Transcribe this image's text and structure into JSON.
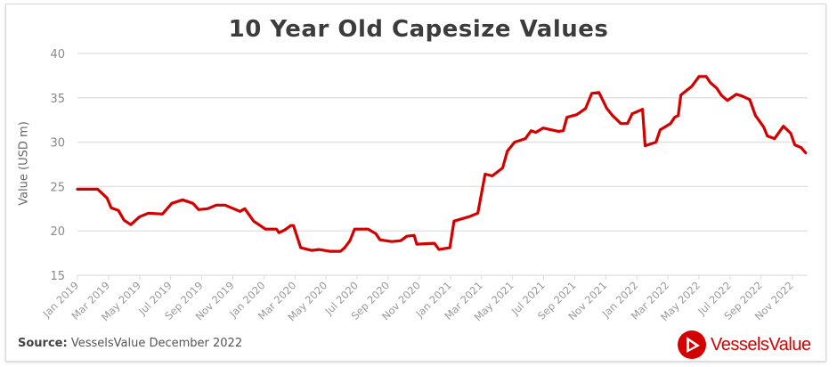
{
  "chart_data": {
    "type": "line",
    "title": "10 Year Old Capesize Values",
    "xlabel": "",
    "ylabel": "Value (USD m)",
    "ylim": [
      15,
      40
    ],
    "yticks": [
      15,
      20,
      25,
      30,
      35,
      40
    ],
    "xticks": [
      "Jan 2019",
      "Mar 2019",
      "May 2019",
      "Jul 2019",
      "Sep 2019",
      "Nov 2019",
      "Jan 2020",
      "Mar 2020",
      "May 2020",
      "Jul 2020",
      "Sep 2020",
      "Nov 2020",
      "Jan 2021",
      "Mar 2021",
      "May 2021",
      "Jul 2021",
      "Sep 2021",
      "Nov 2021",
      "Jan 2022",
      "Mar 2022",
      "May 2022",
      "Jul 2022",
      "Sep 2022",
      "Nov 2022"
    ],
    "grid": true,
    "legend": "none",
    "line_color": "#d40000",
    "series": [
      {
        "x": [
          "2019-01-01",
          "2019-02-10",
          "2019-02-28",
          "2019-03-06",
          "2019-03-20",
          "2019-04-01",
          "2019-04-14",
          "2019-05-01",
          "2019-05-18",
          "2019-06-15",
          "2019-07-03",
          "2019-07-24",
          "2019-08-14",
          "2019-08-25",
          "2019-09-12",
          "2019-09-29",
          "2019-10-16",
          "2019-11-15",
          "2019-11-24",
          "2019-12-11",
          "2020-01-04",
          "2020-01-25",
          "2020-01-30",
          "2020-02-11",
          "2020-02-23",
          "2020-02-28",
          "2020-03-12",
          "2020-04-03",
          "2020-04-17",
          "2020-05-08",
          "2020-05-29",
          "2020-06-07",
          "2020-06-17",
          "2020-06-26",
          "2020-07-22",
          "2020-08-07",
          "2020-08-15",
          "2020-09-08",
          "2020-09-25",
          "2020-10-07",
          "2020-10-21",
          "2020-10-26",
          "2020-11-30",
          "2020-12-09",
          "2020-12-30",
          "2021-01-08",
          "2021-01-25",
          "2021-02-07",
          "2021-02-24",
          "2021-03-08",
          "2021-03-22",
          "2021-04-12",
          "2021-04-21",
          "2021-05-05",
          "2021-05-26",
          "2021-06-07",
          "2021-06-16",
          "2021-06-30",
          "2021-07-30",
          "2021-08-09",
          "2021-08-16",
          "2021-09-05",
          "2021-09-22",
          "2021-10-04",
          "2021-10-18",
          "2021-11-03",
          "2021-11-14",
          "2021-11-30",
          "2021-12-13",
          "2021-12-22",
          "2022-01-12",
          "2022-01-17",
          "2022-02-08",
          "2022-02-16",
          "2022-03-06",
          "2022-03-14",
          "2022-03-21",
          "2022-03-26",
          "2022-04-17",
          "2022-05-01",
          "2022-05-15",
          "2022-05-23",
          "2022-06-05",
          "2022-06-14",
          "2022-06-26",
          "2022-07-13",
          "2022-07-24",
          "2022-08-09",
          "2022-08-20",
          "2022-09-06",
          "2022-09-13",
          "2022-09-27",
          "2022-10-14",
          "2022-10-28",
          "2022-11-06",
          "2022-11-18",
          "2022-11-27"
        ],
        "y": [
          24.7,
          24.7,
          23.7,
          22.6,
          22.3,
          21.2,
          20.7,
          21.6,
          22.0,
          21.9,
          23.1,
          23.5,
          23.1,
          22.4,
          22.5,
          22.9,
          22.9,
          22.2,
          22.5,
          21.1,
          20.2,
          20.2,
          19.8,
          20.1,
          20.6,
          20.6,
          18.1,
          17.8,
          17.9,
          17.7,
          17.7,
          18.1,
          18.9,
          20.2,
          20.2,
          19.7,
          19.0,
          18.8,
          18.9,
          19.4,
          19.5,
          18.5,
          18.6,
          17.9,
          18.1,
          21.1,
          21.4,
          21.6,
          22.0,
          26.4,
          26.2,
          27.1,
          29.0,
          30.0,
          30.4,
          31.3,
          31.1,
          31.6,
          31.2,
          31.3,
          32.8,
          33.1,
          33.8,
          35.5,
          35.6,
          33.8,
          33.0,
          32.1,
          32.1,
          33.2,
          33.7,
          29.6,
          30.0,
          31.4,
          32.1,
          32.8,
          33.0,
          35.3,
          36.3,
          37.4,
          37.4,
          36.7,
          36.1,
          35.3,
          34.7,
          35.4,
          35.2,
          34.8,
          33.0,
          31.7,
          30.7,
          30.4,
          31.8,
          31.0,
          29.7,
          29.4,
          28.8
        ]
      }
    ]
  },
  "source": {
    "label": "Source:",
    "text": "VesselsValue December 2022"
  },
  "logo": {
    "text": "VesselsValue",
    "color": "#d40000"
  }
}
